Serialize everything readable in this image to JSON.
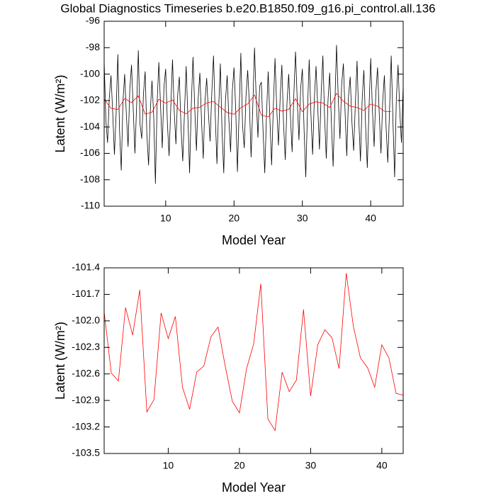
{
  "chart_data": [
    {
      "type": "line",
      "title": "Global Diagnostics Timeseries b.e20.B1850.f09_g16.pi_control.all.136",
      "x_label": "Model Year",
      "y_label": "Latent (W/m²)",
      "xlim": [
        1,
        44.75
      ],
      "xticks": [
        10,
        20,
        30,
        40
      ],
      "ylim": [
        -110,
        -96
      ],
      "yticks": [
        -110,
        -108,
        -106,
        -104,
        -102,
        -100,
        -98,
        -96
      ],
      "series": [
        {
          "color": "#000000",
          "x": [
            1,
            1.25,
            1.5,
            1.75,
            2,
            2.25,
            2.5,
            2.75,
            3,
            3.25,
            3.5,
            3.75,
            4,
            4.25,
            4.5,
            4.75,
            5,
            5.25,
            5.5,
            5.75,
            6,
            6.25,
            6.5,
            6.75,
            7,
            7.25,
            7.5,
            7.75,
            8,
            8.25,
            8.5,
            8.75,
            9,
            9.25,
            9.5,
            9.75,
            10,
            10.25,
            10.5,
            10.75,
            11,
            11.25,
            11.5,
            11.75,
            12,
            12.25,
            12.5,
            12.75,
            13,
            13.25,
            13.5,
            13.75,
            14,
            14.25,
            14.5,
            14.75,
            15,
            15.25,
            15.5,
            15.75,
            16,
            16.25,
            16.5,
            16.75,
            17,
            17.25,
            17.5,
            17.75,
            18,
            18.25,
            18.5,
            18.75,
            19,
            19.25,
            19.5,
            19.75,
            20,
            20.25,
            20.5,
            20.75,
            21,
            21.25,
            21.5,
            21.75,
            22,
            22.25,
            22.5,
            22.75,
            23,
            23.25,
            23.5,
            23.75,
            24,
            24.25,
            24.5,
            24.75,
            25,
            25.25,
            25.5,
            25.75,
            26,
            26.25,
            26.5,
            26.75,
            27,
            27.25,
            27.5,
            27.75,
            28,
            28.25,
            28.5,
            28.75,
            29,
            29.25,
            29.5,
            29.75,
            30,
            30.25,
            30.5,
            30.75,
            31,
            31.25,
            31.5,
            31.75,
            32,
            32.25,
            32.5,
            32.75,
            33,
            33.25,
            33.5,
            33.75,
            34,
            34.25,
            34.5,
            34.75,
            35,
            35.25,
            35.5,
            35.75,
            36,
            36.25,
            36.5,
            36.75,
            37,
            37.25,
            37.5,
            37.75,
            38,
            38.25,
            38.5,
            38.75,
            39,
            39.25,
            39.5,
            39.75,
            40,
            40.25,
            40.5,
            40.75,
            41,
            41.25,
            41.5,
            41.75,
            42,
            42.25,
            42.5,
            42.75,
            43,
            43.25,
            43.5,
            43.75,
            44,
            44.25,
            44.5,
            44.75
          ],
          "values": [
            -99.0,
            -103.5,
            -105.2,
            -101.8,
            -100.1,
            -102.9,
            -106.1,
            -103.0,
            -98.5,
            -104.2,
            -107.3,
            -102.1,
            -100.0,
            -103.1,
            -105.5,
            -101.2,
            -99.3,
            -102.6,
            -106.0,
            -102.4,
            -98.2,
            -103.8,
            -104.9,
            -101.5,
            -99.8,
            -104.6,
            -106.9,
            -102.8,
            -100.5,
            -103.2,
            -108.3,
            -102.2,
            -99.1,
            -102.4,
            -105.6,
            -101.0,
            -99.6,
            -103.7,
            -106.2,
            -102.5,
            -98.9,
            -102.8,
            -105.3,
            -101.6,
            -100.2,
            -104.1,
            -106.6,
            -102.9,
            -99.4,
            -103.3,
            -107.5,
            -102.3,
            -98.7,
            -102.5,
            -105.8,
            -101.9,
            -99.9,
            -103.6,
            -106.4,
            -102.1,
            -100.3,
            -102.9,
            -105.1,
            -101.4,
            -98.6,
            -103.0,
            -106.8,
            -102.6,
            -99.2,
            -104.4,
            -107.5,
            -102.0,
            -100.1,
            -103.5,
            -105.9,
            -101.3,
            -99.5,
            -102.7,
            -107.4,
            -102.8,
            -98.4,
            -103.9,
            -105.6,
            -101.7,
            -99.7,
            -102.3,
            -106.3,
            -102.4,
            -98.0,
            -101.9,
            -104.8,
            -100.9,
            -100.6,
            -104.3,
            -107.5,
            -103.1,
            -99.8,
            -103.4,
            -106.9,
            -102.5,
            -98.8,
            -102.6,
            -105.4,
            -101.8,
            -99.3,
            -103.8,
            -106.5,
            -102.2,
            -100.0,
            -103.1,
            -105.9,
            -101.6,
            -98.3,
            -102.0,
            -105.0,
            -101.1,
            -99.6,
            -104.2,
            -107.8,
            -102.7,
            -98.9,
            -103.0,
            -106.1,
            -101.9,
            -99.4,
            -102.5,
            -105.7,
            -101.5,
            -98.6,
            -103.2,
            -106.4,
            -102.0,
            -99.9,
            -103.7,
            -107.0,
            -102.4,
            -97.8,
            -101.8,
            -104.9,
            -100.8,
            -99.2,
            -102.9,
            -106.2,
            -101.7,
            -100.2,
            -103.6,
            -105.8,
            -102.3,
            -99.0,
            -103.3,
            -106.6,
            -101.9,
            -99.7,
            -103.9,
            -107.1,
            -102.6,
            -98.8,
            -102.7,
            -105.5,
            -101.4,
            -99.5,
            -103.0,
            -106.0,
            -102.1,
            -100.1,
            -104.0,
            -106.7,
            -102.8,
            -98.6,
            -103.5,
            -107.8,
            -101.9,
            -99.3,
            -102.8,
            -105.2,
            -100.8
          ]
        },
        {
          "color": "#ff0000",
          "x": [
            1,
            2,
            3,
            4,
            5,
            6,
            7,
            8,
            9,
            10,
            11,
            12,
            13,
            14,
            15,
            16,
            17,
            18,
            19,
            20,
            21,
            22,
            23,
            24,
            25,
            26,
            27,
            28,
            29,
            30,
            31,
            32,
            33,
            34,
            35,
            36,
            37,
            38,
            39,
            40,
            41,
            42,
            43
          ],
          "values": [
            -101.9,
            -102.59,
            -102.68,
            -101.85,
            -102.16,
            -101.65,
            -103.03,
            -102.89,
            -101.91,
            -102.2,
            -101.95,
            -102.75,
            -103.0,
            -102.58,
            -102.51,
            -102.18,
            -102.07,
            -102.51,
            -102.91,
            -103.04,
            -102.54,
            -102.26,
            -101.58,
            -103.11,
            -103.24,
            -102.58,
            -102.8,
            -102.67,
            -101.87,
            -102.85,
            -102.27,
            -102.1,
            -102.19,
            -102.54,
            -101.46,
            -102.06,
            -102.42,
            -102.53,
            -102.75,
            -102.27,
            -102.42,
            -102.82,
            -102.84
          ]
        }
      ]
    },
    {
      "type": "line",
      "x_label": "Model Year",
      "y_label": "Latent (W/m²)",
      "xlim": [
        1,
        43
      ],
      "xticks": [
        10,
        20,
        30,
        40
      ],
      "ylim": [
        -103.5,
        -101.4
      ],
      "yticks": [
        -103.5,
        -103.2,
        -102.9,
        -102.6,
        -102.3,
        {
          "value": -102,
          "label": "-102.0"
        },
        -101.7,
        -101.4
      ],
      "x": [
        1,
        2,
        3,
        4,
        5,
        6,
        7,
        8,
        9,
        10,
        11,
        12,
        13,
        14,
        15,
        16,
        17,
        18,
        19,
        20,
        21,
        22,
        23,
        24,
        25,
        26,
        27,
        28,
        29,
        30,
        31,
        32,
        33,
        34,
        35,
        36,
        37,
        38,
        39,
        40,
        41,
        42,
        43
      ],
      "series": [
        {
          "color": "#ff0000",
          "values": [
            -101.9,
            -102.59,
            -102.68,
            -101.85,
            -102.16,
            -101.65,
            -103.03,
            -102.89,
            -101.91,
            -102.2,
            -101.95,
            -102.75,
            -103.0,
            -102.58,
            -102.51,
            -102.18,
            -102.07,
            -102.51,
            -102.91,
            -103.04,
            -102.54,
            -102.26,
            -101.58,
            -103.11,
            -103.24,
            -102.58,
            -102.8,
            -102.67,
            -101.87,
            -102.85,
            -102.27,
            -102.1,
            -102.19,
            -102.54,
            -101.46,
            -102.06,
            -102.42,
            -102.53,
            -102.75,
            -102.27,
            -102.42,
            -102.82,
            -102.84
          ]
        }
      ]
    }
  ]
}
